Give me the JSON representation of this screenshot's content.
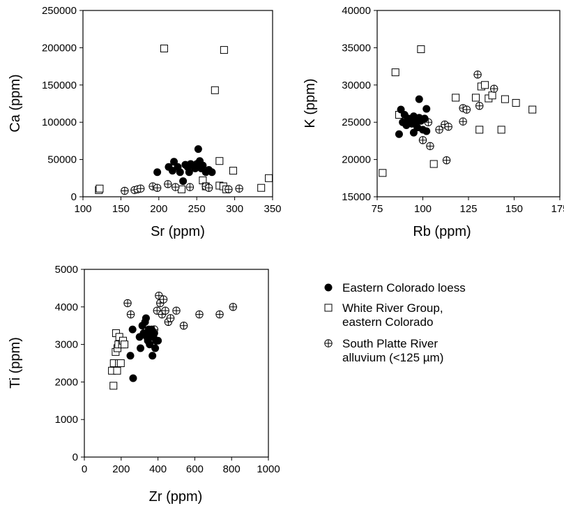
{
  "legend": {
    "items": [
      {
        "marker": "filled-circle",
        "lines": [
          "Eastern Colorado loess"
        ]
      },
      {
        "marker": "open-square",
        "lines": [
          "White River Group,",
          "eastern Colorado"
        ]
      },
      {
        "marker": "crossed-circle",
        "lines": [
          "South Platte River",
          "alluvium (<125 µm)"
        ]
      }
    ]
  },
  "chart_data": [
    {
      "type": "scatter",
      "id": "ca-sr",
      "xlabel": "Sr (ppm)",
      "ylabel": "Ca (ppm)",
      "xlim": [
        100,
        350
      ],
      "ylim": [
        0,
        250000
      ],
      "xticks": [
        "100",
        "150",
        "200",
        "250",
        "300",
        "350"
      ],
      "yticks": [
        "0",
        "50000",
        "100000",
        "150000",
        "200000",
        "250000"
      ],
      "series": [
        {
          "marker": "filled-circle",
          "points": [
            [
              198,
              33000
            ],
            [
              213,
              40000
            ],
            [
              218,
              35000
            ],
            [
              220,
              47000
            ],
            [
              225,
              40000
            ],
            [
              228,
              33000
            ],
            [
              232,
              21000
            ],
            [
              235,
              43000
            ],
            [
              238,
              40000
            ],
            [
              240,
              33000
            ],
            [
              242,
              44000
            ],
            [
              245,
              42000
            ],
            [
              248,
              38000
            ],
            [
              250,
              44000
            ],
            [
              252,
              64000
            ],
            [
              254,
              48000
            ],
            [
              256,
              38000
            ],
            [
              258,
              42000
            ],
            [
              262,
              33000
            ],
            [
              266,
              36000
            ],
            [
              270,
              33000
            ]
          ]
        },
        {
          "marker": "open-square",
          "points": [
            [
              121,
              9000
            ],
            [
              122,
              11000
            ],
            [
              207,
              199000
            ],
            [
              286,
              197000
            ],
            [
              274,
              143000
            ],
            [
              280,
              48000
            ],
            [
              298,
              35000
            ],
            [
              258,
              22000
            ],
            [
              262,
              14000
            ],
            [
              280,
              15000
            ],
            [
              285,
              14000
            ],
            [
              289,
              10000
            ],
            [
              335,
              12000
            ],
            [
              345,
              25000
            ],
            [
              230,
              10000
            ]
          ]
        },
        {
          "marker": "crossed-circle",
          "points": [
            [
              155,
              8000
            ],
            [
              168,
              9000
            ],
            [
              172,
              10000
            ],
            [
              176,
              11000
            ],
            [
              192,
              14000
            ],
            [
              198,
              12000
            ],
            [
              212,
              17000
            ],
            [
              222,
              13000
            ],
            [
              241,
              13000
            ],
            [
              262,
              14000
            ],
            [
              266,
              12000
            ],
            [
              292,
              10000
            ],
            [
              306,
              11000
            ]
          ]
        }
      ]
    },
    {
      "type": "scatter",
      "id": "k-rb",
      "xlabel": "Rb (ppm)",
      "ylabel": "K (ppm)",
      "xlim": [
        75,
        175
      ],
      "ylim": [
        15000,
        40000
      ],
      "xticks": [
        "75",
        "100",
        "125",
        "150",
        "175"
      ],
      "yticks": [
        "15000",
        "20000",
        "25000",
        "30000",
        "35000",
        "40000"
      ],
      "series": [
        {
          "marker": "filled-circle",
          "points": [
            [
              87,
              23400
            ],
            [
              88,
              26700
            ],
            [
              89,
              25000
            ],
            [
              90,
              26000
            ],
            [
              91,
              24600
            ],
            [
              92,
              25500
            ],
            [
              93,
              25200
            ],
            [
              94,
              24800
            ],
            [
              95,
              25800
            ],
            [
              95,
              23600
            ],
            [
              96,
              25000
            ],
            [
              97,
              24300
            ],
            [
              98,
              25600
            ],
            [
              98,
              28100
            ],
            [
              99,
              25200
            ],
            [
              100,
              24000
            ],
            [
              101,
              25500
            ],
            [
              102,
              23800
            ],
            [
              102,
              26800
            ]
          ]
        },
        {
          "marker": "open-square",
          "points": [
            [
              78,
              18200
            ],
            [
              85,
              31700
            ],
            [
              87,
              26000
            ],
            [
              99,
              34800
            ],
            [
              106,
              19400
            ],
            [
              118,
              28300
            ],
            [
              129,
              28300
            ],
            [
              131,
              24000
            ],
            [
              132,
              29800
            ],
            [
              134,
              30000
            ],
            [
              136,
              28200
            ],
            [
              138,
              28600
            ],
            [
              143,
              24000
            ],
            [
              145,
              28100
            ],
            [
              151,
              27600
            ],
            [
              160,
              26700
            ]
          ]
        },
        {
          "marker": "crossed-circle",
          "points": [
            [
              100,
              22600
            ],
            [
              103,
              25000
            ],
            [
              104,
              21800
            ],
            [
              109,
              24000
            ],
            [
              112,
              24700
            ],
            [
              113,
              19900
            ],
            [
              114,
              24400
            ],
            [
              122,
              26900
            ],
            [
              122,
              25100
            ],
            [
              124,
              26700
            ],
            [
              130,
              31400
            ],
            [
              131,
              27200
            ],
            [
              139,
              29500
            ]
          ]
        }
      ]
    },
    {
      "type": "scatter",
      "id": "ti-zr",
      "xlabel": "Zr (ppm)",
      "ylabel": "Ti (ppm)",
      "xlim": [
        0,
        1000
      ],
      "ylim": [
        0,
        5000
      ],
      "xticks": [
        "0",
        "200",
        "400",
        "600",
        "800",
        "1000"
      ],
      "yticks": [
        "0",
        "1000",
        "2000",
        "3000",
        "4000",
        "5000"
      ],
      "series": [
        {
          "marker": "filled-circle",
          "points": [
            [
              250,
              2700
            ],
            [
              262,
              3400
            ],
            [
              265,
              2100
            ],
            [
              300,
              3200
            ],
            [
              305,
              2900
            ],
            [
              315,
              3500
            ],
            [
              322,
              3300
            ],
            [
              330,
              3600
            ],
            [
              335,
              3700
            ],
            [
              340,
              3200
            ],
            [
              345,
              3100
            ],
            [
              350,
              3400
            ],
            [
              355,
              3000
            ],
            [
              360,
              3300
            ],
            [
              362,
              3200
            ],
            [
              365,
              3400
            ],
            [
              370,
              2700
            ],
            [
              375,
              3200
            ],
            [
              380,
              3300
            ],
            [
              385,
              2900
            ],
            [
              392,
              3100
            ],
            [
              400,
              3100
            ]
          ]
        },
        {
          "marker": "open-square",
          "points": [
            [
              150,
              2300
            ],
            [
              158,
              1900
            ],
            [
              160,
              2500
            ],
            [
              170,
              2800
            ],
            [
              172,
              3300
            ],
            [
              178,
              2300
            ],
            [
              180,
              2900
            ],
            [
              185,
              3000
            ],
            [
              188,
              2500
            ],
            [
              190,
              3200
            ],
            [
              198,
              2500
            ],
            [
              205,
              3000
            ],
            [
              210,
              3100
            ],
            [
              218,
              3000
            ]
          ]
        },
        {
          "marker": "crossed-circle",
          "points": [
            [
              235,
              4100
            ],
            [
              252,
              3800
            ],
            [
              380,
              3400
            ],
            [
              390,
              3100
            ],
            [
              395,
              3900
            ],
            [
              405,
              4300
            ],
            [
              412,
              4100
            ],
            [
              422,
              3800
            ],
            [
              430,
              4200
            ],
            [
              440,
              3900
            ],
            [
              456,
              3600
            ],
            [
              468,
              3700
            ],
            [
              500,
              3900
            ],
            [
              540,
              3500
            ],
            [
              625,
              3800
            ],
            [
              735,
              3800
            ],
            [
              808,
              4000
            ]
          ]
        }
      ]
    }
  ]
}
